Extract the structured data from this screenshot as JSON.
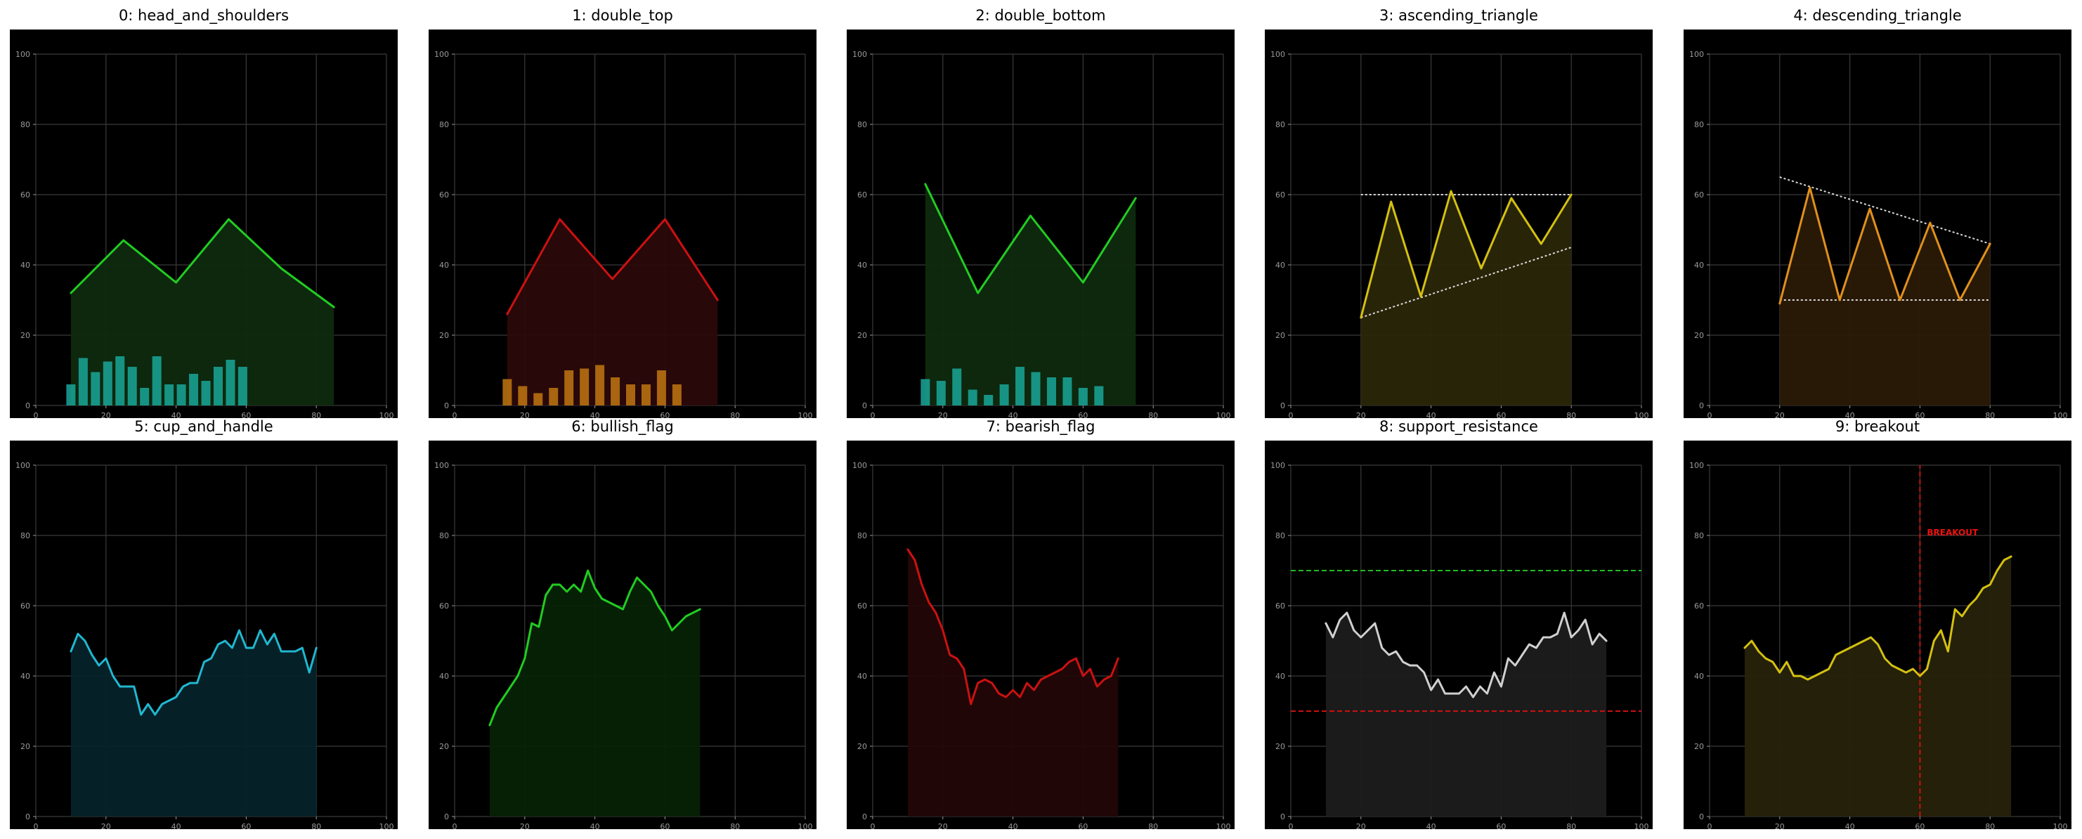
{
  "colors": {
    "background": "#000000",
    "figure": "#ffffff",
    "grid": "#3a3a3a",
    "tick": "#9a9a9a"
  },
  "chart_data": [
    {
      "id": 0,
      "title": "0: head_and_shoulders",
      "type": "line",
      "xlim": [
        0,
        100
      ],
      "ylim": [
        0,
        100
      ],
      "ticks": [
        "0",
        "20",
        "40",
        "60",
        "80",
        "100"
      ],
      "grid": true,
      "color": "#22cc22",
      "fill": "#0e2a0e",
      "x": [
        10,
        25,
        40,
        55,
        70,
        85
      ],
      "y": [
        32,
        47,
        35,
        53,
        39,
        28
      ],
      "volume_color": "#1aa69a",
      "volume": [
        [
          10,
          6
        ],
        [
          13.5,
          13.5
        ],
        [
          17,
          9.5
        ],
        [
          20.5,
          12.5
        ],
        [
          24,
          14
        ],
        [
          27.5,
          11
        ],
        [
          31,
          5
        ],
        [
          34.5,
          14
        ],
        [
          38,
          6
        ],
        [
          41.5,
          6
        ],
        [
          45,
          9
        ],
        [
          48.5,
          7
        ],
        [
          52,
          11
        ],
        [
          55.5,
          13
        ],
        [
          59,
          11
        ]
      ]
    },
    {
      "id": 1,
      "title": "1: double_top",
      "type": "line",
      "xlim": [
        0,
        100
      ],
      "ylim": [
        0,
        100
      ],
      "ticks": [
        "0",
        "20",
        "40",
        "60",
        "80",
        "100"
      ],
      "grid": true,
      "color": "#cc1111",
      "fill": "#2a0808",
      "x": [
        15,
        30,
        45,
        60,
        75
      ],
      "y": [
        26,
        53,
        36,
        53,
        30
      ],
      "volume_color": "#c07510",
      "volume": [
        [
          15,
          7.5
        ],
        [
          19.4,
          5.5
        ],
        [
          23.8,
          3.5
        ],
        [
          28.2,
          5
        ],
        [
          32.6,
          10
        ],
        [
          37,
          10.5
        ],
        [
          41.4,
          11.5
        ],
        [
          45.8,
          8
        ],
        [
          50.2,
          6
        ],
        [
          54.6,
          6
        ],
        [
          59,
          10
        ],
        [
          63.4,
          6
        ]
      ]
    },
    {
      "id": 2,
      "title": "2: double_bottom",
      "type": "line",
      "xlim": [
        0,
        100
      ],
      "ylim": [
        0,
        100
      ],
      "ticks": [
        "0",
        "20",
        "40",
        "60",
        "80",
        "100"
      ],
      "grid": true,
      "color": "#22cc22",
      "fill": "#0e2a0e",
      "x": [
        15,
        30,
        45,
        60,
        75
      ],
      "y": [
        63,
        32,
        54,
        35,
        59
      ],
      "volume_color": "#1aa69a",
      "volume": [
        [
          15,
          7.5
        ],
        [
          19.5,
          7
        ],
        [
          24,
          10.5
        ],
        [
          28.5,
          4.5
        ],
        [
          33,
          3
        ],
        [
          37.5,
          6
        ],
        [
          42,
          11
        ],
        [
          46.5,
          9.5
        ],
        [
          51,
          8
        ],
        [
          55.5,
          8
        ],
        [
          60,
          5
        ],
        [
          64.5,
          5.5
        ]
      ]
    },
    {
      "id": 3,
      "title": "3: ascending_triangle",
      "type": "line",
      "xlim": [
        0,
        100
      ],
      "ylim": [
        0,
        100
      ],
      "ticks": [
        "0",
        "20",
        "40",
        "60",
        "80",
        "100"
      ],
      "grid": true,
      "color": "#d4c010",
      "fill": "#2a2608",
      "x": [
        20,
        28.6,
        37.1,
        45.7,
        54.3,
        62.9,
        71.4,
        80
      ],
      "y": [
        25,
        58,
        31,
        61,
        39,
        59,
        46,
        60
      ],
      "lines": [
        {
          "x": [
            20,
            80
          ],
          "y": [
            60,
            60
          ],
          "color": "#d8d8d8",
          "dash": "dotted"
        },
        {
          "x": [
            20,
            80
          ],
          "y": [
            25,
            45
          ],
          "color": "#d8d8d8",
          "dash": "dotted"
        }
      ]
    },
    {
      "id": 4,
      "title": "4: descending_triangle",
      "type": "line",
      "xlim": [
        0,
        100
      ],
      "ylim": [
        0,
        100
      ],
      "ticks": [
        "0",
        "20",
        "40",
        "60",
        "80",
        "100"
      ],
      "grid": true,
      "color": "#e0901c",
      "fill": "#2a1a06",
      "x": [
        20,
        28.6,
        37.1,
        45.7,
        54.3,
        62.9,
        71.4,
        80
      ],
      "y": [
        29,
        62,
        30,
        56,
        30,
        52,
        30,
        46
      ],
      "lines": [
        {
          "x": [
            20,
            80
          ],
          "y": [
            65,
            46
          ],
          "color": "#d8d8d8",
          "dash": "dotted"
        },
        {
          "x": [
            20,
            80
          ],
          "y": [
            30,
            30
          ],
          "color": "#d8d8d8",
          "dash": "dotted"
        }
      ]
    },
    {
      "id": 5,
      "title": "5: cup_and_handle",
      "type": "line",
      "xlim": [
        0,
        100
      ],
      "ylim": [
        0,
        100
      ],
      "ticks": [
        "0",
        "20",
        "40",
        "60",
        "80",
        "100"
      ],
      "grid": true,
      "color": "#20b8d0",
      "fill": "#06222a",
      "x": [
        10,
        12,
        14,
        16,
        18,
        20,
        22,
        24,
        26,
        28,
        30,
        32,
        34,
        36,
        38,
        40,
        42,
        44,
        46,
        48,
        50,
        52,
        54,
        56,
        58,
        60,
        62,
        64,
        66,
        68,
        70,
        72,
        74,
        76,
        78,
        80
      ],
      "y": [
        47,
        52,
        50,
        46,
        43,
        45,
        40,
        37,
        37,
        37,
        29,
        32,
        29,
        32,
        33,
        34,
        37,
        38,
        38,
        44,
        45,
        49,
        50,
        48,
        53,
        48,
        48,
        53,
        49,
        52,
        47,
        47,
        47,
        48,
        41,
        48
      ]
    },
    {
      "id": 6,
      "title": "6: bullish_flag",
      "type": "line",
      "xlim": [
        0,
        100
      ],
      "ylim": [
        0,
        100
      ],
      "ticks": [
        "0",
        "20",
        "40",
        "60",
        "80",
        "100"
      ],
      "grid": true,
      "color": "#22cc22",
      "fill": "#062206",
      "x": [
        10,
        12,
        14,
        16,
        18,
        20,
        22,
        24,
        26,
        28,
        30,
        32,
        34,
        36,
        38,
        40,
        42,
        44,
        46,
        48,
        50,
        52,
        54,
        56,
        58,
        60,
        62,
        64,
        66,
        68,
        70
      ],
      "y": [
        26,
        31,
        34,
        37,
        40,
        45,
        55,
        54,
        63,
        66,
        66,
        64,
        66,
        64,
        70,
        65,
        62,
        61,
        60,
        59,
        64,
        68,
        66,
        64,
        60,
        57,
        53,
        55,
        57,
        58,
        59
      ]
    },
    {
      "id": 7,
      "title": "7: bearish_flag",
      "type": "line",
      "xlim": [
        0,
        100
      ],
      "ylim": [
        0,
        100
      ],
      "ticks": [
        "0",
        "20",
        "40",
        "60",
        "80",
        "100"
      ],
      "grid": true,
      "color": "#cc1111",
      "fill": "#220606",
      "x": [
        10,
        12,
        14,
        16,
        18,
        20,
        22,
        24,
        26,
        28,
        30,
        32,
        34,
        36,
        38,
        40,
        42,
        44,
        46,
        48,
        50,
        52,
        54,
        56,
        58,
        60,
        62,
        64,
        66,
        68,
        70
      ],
      "y": [
        76,
        73,
        66,
        61,
        58,
        53,
        46,
        45,
        42,
        32,
        38,
        39,
        38,
        35,
        34,
        36,
        34,
        38,
        36,
        39,
        40,
        41,
        42,
        44,
        45,
        40,
        42,
        37,
        39,
        40,
        45
      ]
    },
    {
      "id": 8,
      "title": "8: support_resistance",
      "type": "line",
      "xlim": [
        0,
        100
      ],
      "ylim": [
        0,
        100
      ],
      "ticks": [
        "0",
        "20",
        "40",
        "60",
        "80",
        "100"
      ],
      "grid": true,
      "color": "#d0d0d0",
      "fill": "#1c1c1c",
      "x": [
        10,
        12,
        14,
        16,
        18,
        20,
        22,
        24,
        26,
        28,
        30,
        32,
        34,
        36,
        38,
        40,
        42,
        44,
        46,
        48,
        50,
        52,
        54,
        56,
        58,
        60,
        62,
        64,
        66,
        68,
        70,
        72,
        74,
        76,
        78,
        80,
        82,
        84,
        86,
        88,
        90
      ],
      "y": [
        55,
        51,
        56,
        58,
        53,
        51,
        53,
        55,
        48,
        46,
        47,
        44,
        43,
        43,
        41,
        36,
        39,
        35,
        35,
        35,
        37,
        34,
        37,
        35,
        41,
        37,
        45,
        43,
        46,
        49,
        48,
        51,
        51,
        52,
        58,
        51,
        53,
        56,
        49,
        52,
        50
      ],
      "lines": [
        {
          "x": [
            0,
            100
          ],
          "y": [
            70,
            70
          ],
          "color": "#22bb22",
          "dash": "dashed"
        },
        {
          "x": [
            0,
            100
          ],
          "y": [
            30,
            30
          ],
          "color": "#cc1111",
          "dash": "dashed"
        }
      ]
    },
    {
      "id": 9,
      "title": "9: breakout",
      "type": "line",
      "xlim": [
        0,
        100
      ],
      "ylim": [
        0,
        100
      ],
      "ticks": [
        "0",
        "20",
        "40",
        "60",
        "80",
        "100"
      ],
      "grid": true,
      "color": "#d4c010",
      "fill": "#26220a",
      "x": [
        10,
        12,
        14,
        16,
        18,
        20,
        22,
        24,
        26,
        28,
        30,
        32,
        34,
        36,
        38,
        40,
        42,
        44,
        46,
        48,
        50,
        52,
        54,
        56,
        58,
        60,
        62,
        64,
        66,
        68,
        70,
        72,
        74,
        76,
        78,
        80,
        82,
        84,
        86
      ],
      "y": [
        48,
        50,
        47,
        45,
        44,
        41,
        44,
        40,
        40,
        39,
        40,
        41,
        42,
        46,
        47,
        48,
        49,
        50,
        51,
        49,
        45,
        43,
        42,
        41,
        42,
        40,
        42,
        50,
        53,
        47,
        59,
        57,
        60,
        62,
        65,
        66,
        70,
        73,
        74
      ],
      "vline": {
        "x": 60,
        "color": "#cc1111",
        "dash": "dashed"
      },
      "annotation": {
        "text": "BREAKOUT",
        "x": 62,
        "y": 80,
        "color": "#ee1111"
      }
    }
  ]
}
